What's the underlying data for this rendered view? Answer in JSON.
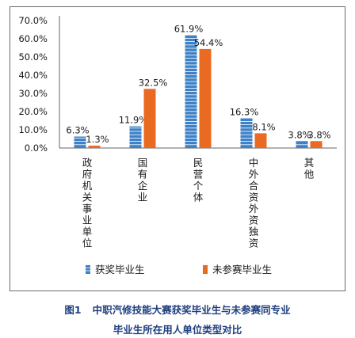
{
  "chart_data": {
    "type": "bar",
    "categories": [
      "政府机关事业单位",
      "国有企业",
      "民营个体",
      "中外合资外资独资",
      "其他"
    ],
    "series": [
      {
        "name": "获奖毕业生",
        "values": [
          6.3,
          11.9,
          61.9,
          16.3,
          3.8
        ],
        "labels": [
          "6.3%",
          "11.9%",
          "61.9%",
          "16.3%",
          "3.8%"
        ],
        "color": "#3d82c8",
        "pattern": "stacked-blocks"
      },
      {
        "name": "未参赛毕业生",
        "values": [
          1.3,
          32.5,
          54.4,
          8.1,
          3.8
        ],
        "labels": [
          "1.3%",
          "32.5%",
          "54.4%",
          "8.1%",
          "3.8%"
        ],
        "color": "#ea6a22",
        "pattern": "solid"
      }
    ],
    "yticks": [
      "0.0%",
      "10.0%",
      "20.0%",
      "30.0%",
      "40.0%",
      "50.0%",
      "60.0%",
      "70.0%"
    ],
    "ylim": [
      0,
      70
    ],
    "grid": false,
    "legend_position": "bottom"
  },
  "caption": {
    "figure_number": "图1",
    "line1": "中职汽修技能大赛获奖毕业生与未参赛同专业",
    "line2": "毕业生所在用人单位类型对比"
  },
  "colors": {
    "axis": "#666666",
    "text": "#1a1a1a",
    "frame": "#6a6a6a",
    "caption": "#1f3f7f"
  }
}
